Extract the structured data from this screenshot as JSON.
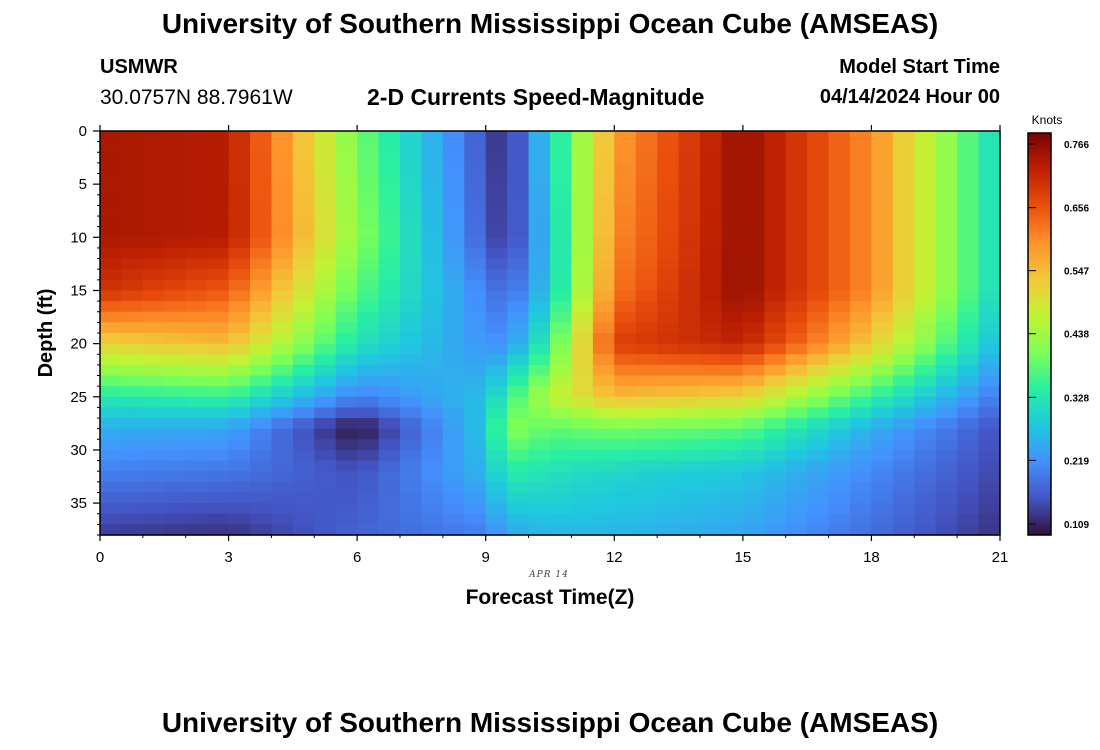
{
  "header": {
    "title": "University of Southern Mississippi Ocean Cube (AMSEAS)",
    "station": "USMWR",
    "coordinates": "30.0757N  88.7961W",
    "model_start_label": "Model Start Time",
    "model_start_value": "04/14/2024 Hour 00"
  },
  "footer": {
    "title": "University of Southern Mississippi Ocean Cube (AMSEAS)"
  },
  "chart_data": {
    "type": "heatmap",
    "title": "2-D Currents Speed-Magnitude",
    "xlabel": "Forecast Time(Z)",
    "ylabel": "Depth (ft)",
    "date_label": "APR 14",
    "xlim": [
      0,
      21
    ],
    "ylim": [
      0,
      38
    ],
    "x_ticks": [
      0,
      3,
      6,
      9,
      12,
      15,
      18,
      21
    ],
    "y_ticks": [
      0,
      5,
      10,
      15,
      20,
      25,
      30,
      35
    ],
    "colorbar": {
      "label": "Knots",
      "ticks": [
        "0.766",
        "0.656",
        "0.547",
        "0.438",
        "0.328",
        "0.219",
        "0.109"
      ],
      "min": 0.09,
      "max": 0.785,
      "colors": [
        "#30123b",
        "#4454c4",
        "#4490fe",
        "#1fc8de",
        "#29efa2",
        "#7dff56",
        "#c1f334",
        "#f1ca3a",
        "#fe922a",
        "#ea4f0d",
        "#be2102",
        "#7a0403"
      ]
    },
    "hours": [
      0,
      3,
      6,
      9,
      9.5,
      10.5,
      12,
      15,
      18,
      21
    ],
    "depths_ft": [
      0,
      10,
      15,
      20,
      25,
      28,
      32,
      38
    ],
    "values_knots": [
      [
        0.74,
        0.73,
        0.4,
        0.15,
        0.11,
        0.3,
        0.58,
        0.76,
        0.6,
        0.3
      ],
      [
        0.74,
        0.73,
        0.42,
        0.16,
        0.12,
        0.28,
        0.6,
        0.76,
        0.6,
        0.3
      ],
      [
        0.7,
        0.65,
        0.38,
        0.2,
        0.17,
        0.28,
        0.62,
        0.76,
        0.6,
        0.3
      ],
      [
        0.52,
        0.55,
        0.32,
        0.22,
        0.22,
        0.35,
        0.68,
        0.72,
        0.53,
        0.26
      ],
      [
        0.33,
        0.35,
        0.2,
        0.27,
        0.35,
        0.46,
        0.55,
        0.52,
        0.35,
        0.19
      ],
      [
        0.25,
        0.24,
        0.09,
        0.28,
        0.42,
        0.38,
        0.4,
        0.38,
        0.25,
        0.15
      ],
      [
        0.2,
        0.19,
        0.15,
        0.26,
        0.34,
        0.32,
        0.3,
        0.28,
        0.21,
        0.14
      ],
      [
        0.13,
        0.12,
        0.17,
        0.2,
        0.24,
        0.26,
        0.26,
        0.24,
        0.18,
        0.12
      ]
    ]
  }
}
